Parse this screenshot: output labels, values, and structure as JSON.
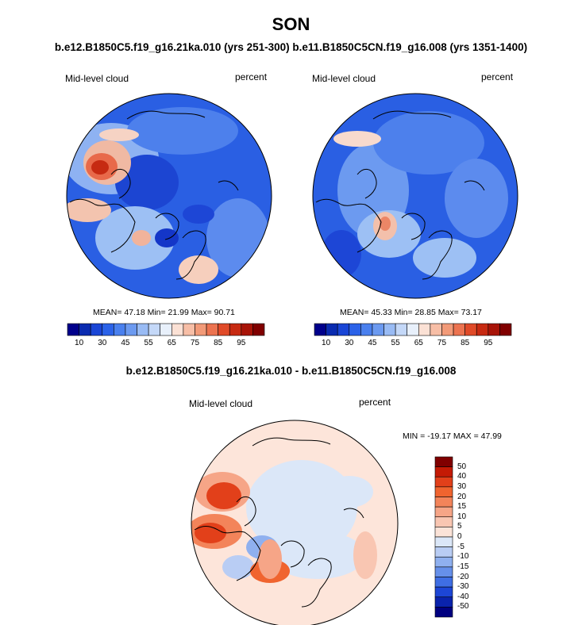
{
  "figure": {
    "title": "SON",
    "subtitle": "b.e12.B1850C5.f19_g16.21ka.010 (yrs 251-300) b.e11.B1850C5CN.f19_g16.008 (yrs 1351-1400)",
    "diff_title": "b.e12.B1850C5.f19_g16.21ka.010 - b.e11.B1850C5CN.f19_g16.008"
  },
  "panels": {
    "left": {
      "variable": "Mid-level cloud",
      "units": "percent",
      "stats": "MEAN=  47.18  Min=  21.99  Max=  90.71"
    },
    "right": {
      "variable": "Mid-level cloud",
      "units": "percent",
      "stats": "MEAN=  45.33  Min=  28.85  Max=  73.17"
    },
    "diff": {
      "variable": "Mid-level cloud",
      "units": "percent",
      "stats": "MIN = -19.17 MAX =  47.99"
    }
  },
  "colorbars": {
    "absolute": {
      "ticks": [
        "10",
        "30",
        "45",
        "55",
        "65",
        "75",
        "85",
        "95"
      ],
      "colors": [
        "#00008b",
        "#0a2bb0",
        "#1a46d6",
        "#2b62e8",
        "#4a80ee",
        "#6c9af0",
        "#99bbf4",
        "#c4d8f8",
        "#e8f0fb",
        "#fbe1d5",
        "#f7bea6",
        "#f29a78",
        "#ec7350",
        "#e04a28",
        "#c72a12",
        "#a81408",
        "#800000"
      ]
    },
    "difference": {
      "labels": [
        "50",
        "40",
        "30",
        "20",
        "15",
        "10",
        "5",
        "0",
        "-5",
        "-10",
        "-15",
        "-20",
        "-30",
        "-40",
        "-50"
      ],
      "colors": [
        "#800000",
        "#c41a05",
        "#e2401a",
        "#f0642f",
        "#f3845a",
        "#f6a587",
        "#f9c6b2",
        "#fbe3d8",
        "#dbe7f8",
        "#b9cdf4",
        "#8fb0ef",
        "#6690ea",
        "#3f6ee4",
        "#1d46d6",
        "#0a23ad",
        "#000080"
      ]
    }
  }
}
